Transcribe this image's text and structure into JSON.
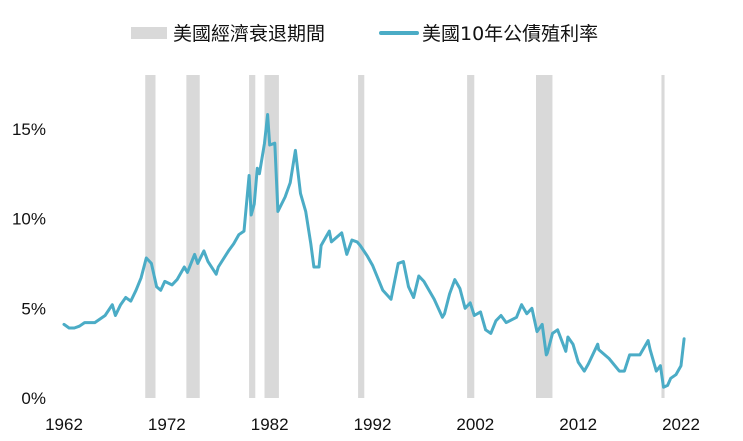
{
  "chart_data": {
    "type": "line",
    "legend": {
      "placement": "top",
      "items": [
        {
          "label": "美國經濟衰退期間",
          "color": "#d9d9d9",
          "kind": "band"
        },
        {
          "label": "美國10年公債殖利率",
          "color": "#4bacc6",
          "kind": "line"
        }
      ]
    },
    "xlim": [
      1962,
      2023
    ],
    "ylim": [
      0,
      18
    ],
    "x_ticks": [
      {
        "value": 1962,
        "label": "1962"
      },
      {
        "value": 1972,
        "label": "1972"
      },
      {
        "value": 1982,
        "label": "1982"
      },
      {
        "value": 1992,
        "label": "1992"
      },
      {
        "value": 2002,
        "label": "2002"
      },
      {
        "value": 2012,
        "label": "2012"
      },
      {
        "value": 2022,
        "label": "2022"
      }
    ],
    "y_ticks": [
      {
        "value": 0,
        "label": "0%"
      },
      {
        "value": 5,
        "label": "5%"
      },
      {
        "value": 10,
        "label": "10%"
      },
      {
        "value": 15,
        "label": "15%"
      }
    ],
    "grid": false,
    "recessions": [
      {
        "start": 1969.9,
        "end": 1970.9
      },
      {
        "start": 1973.9,
        "end": 1975.2
      },
      {
        "start": 1980.0,
        "end": 1980.6
      },
      {
        "start": 1981.5,
        "end": 1982.9
      },
      {
        "start": 1990.6,
        "end": 1991.2
      },
      {
        "start": 2001.2,
        "end": 2001.9
      },
      {
        "start": 2007.9,
        "end": 2009.5
      },
      {
        "start": 2020.1,
        "end": 2020.4
      }
    ],
    "series": [
      {
        "name": "美國10年公債殖利率",
        "color": "#4bacc6",
        "x": [
          1962.0,
          1962.5,
          1963.0,
          1963.5,
          1964.0,
          1965.0,
          1966.0,
          1966.7,
          1967.0,
          1967.5,
          1968.0,
          1968.5,
          1969.0,
          1969.5,
          1970.0,
          1970.5,
          1971.0,
          1971.4,
          1971.8,
          1972.5,
          1973.0,
          1973.7,
          1974.0,
          1974.7,
          1975.0,
          1975.6,
          1976.0,
          1976.8,
          1977.0,
          1978.0,
          1978.5,
          1979.0,
          1979.5,
          1980.0,
          1980.2,
          1980.5,
          1980.8,
          1981.0,
          1981.5,
          1981.8,
          1982.0,
          1982.5,
          1982.8,
          1983.5,
          1984.0,
          1984.5,
          1985.0,
          1985.5,
          1986.0,
          1986.3,
          1986.8,
          1987.0,
          1987.5,
          1987.8,
          1988.0,
          1989.0,
          1989.5,
          1990.0,
          1990.5,
          1990.8,
          1991.5,
          1992.0,
          1993.0,
          1993.8,
          1994.5,
          1995.0,
          1995.5,
          1996.0,
          1996.5,
          1997.0,
          1998.0,
          1998.8,
          1999.0,
          1999.5,
          2000.0,
          2000.5,
          2001.0,
          2001.5,
          2001.9,
          2002.5,
          2003.0,
          2003.5,
          2004.0,
          2004.5,
          2005.0,
          2006.0,
          2006.5,
          2007.0,
          2007.5,
          2008.0,
          2008.5,
          2008.9,
          2009.0,
          2009.5,
          2010.0,
          2010.8,
          2011.0,
          2011.5,
          2012.0,
          2012.6,
          2013.0,
          2013.9,
          2014.0,
          2015.0,
          2016.0,
          2016.5,
          2017.0,
          2018.0,
          2018.8,
          2019.0,
          2019.6,
          2020.0,
          2020.3,
          2020.7,
          2021.0,
          2021.5,
          2022.0,
          2022.3
        ],
        "y": [
          4.1,
          3.9,
          3.9,
          4.0,
          4.2,
          4.2,
          4.6,
          5.2,
          4.6,
          5.2,
          5.6,
          5.4,
          6.0,
          6.7,
          7.8,
          7.5,
          6.2,
          6.0,
          6.5,
          6.3,
          6.6,
          7.3,
          7.0,
          8.0,
          7.5,
          8.2,
          7.6,
          6.9,
          7.3,
          8.2,
          8.6,
          9.1,
          9.3,
          12.4,
          10.2,
          10.8,
          12.8,
          12.5,
          14.2,
          15.8,
          14.1,
          14.2,
          10.4,
          11.2,
          12.0,
          13.8,
          11.4,
          10.4,
          8.6,
          7.3,
          7.3,
          8.5,
          9.0,
          9.3,
          8.7,
          9.2,
          8.0,
          8.8,
          8.7,
          8.5,
          7.9,
          7.4,
          6.0,
          5.5,
          7.5,
          7.6,
          6.2,
          5.6,
          6.8,
          6.5,
          5.5,
          4.5,
          4.7,
          5.8,
          6.6,
          6.1,
          5.0,
          5.3,
          4.6,
          4.8,
          3.8,
          3.6,
          4.3,
          4.6,
          4.2,
          4.5,
          5.2,
          4.7,
          5.0,
          3.7,
          4.1,
          2.4,
          2.5,
          3.6,
          3.8,
          2.6,
          3.4,
          3.0,
          2.0,
          1.5,
          1.9,
          3.0,
          2.7,
          2.2,
          1.5,
          1.5,
          2.4,
          2.4,
          3.2,
          2.7,
          1.5,
          1.8,
          0.6,
          0.7,
          1.1,
          1.3,
          1.8,
          3.3
        ]
      }
    ]
  }
}
